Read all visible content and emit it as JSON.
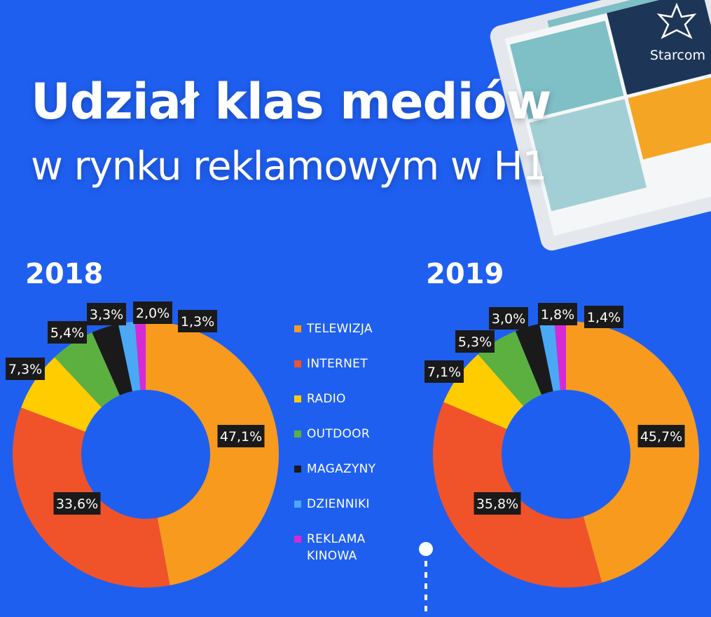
{
  "header": {
    "title": "Udział klas mediów",
    "subtitle": "w rynku reklamowym w H1",
    "brand": "Starcom"
  },
  "legend": [
    {
      "label": "TELEWIZJA",
      "color": "#f79a1e"
    },
    {
      "label": "INTERNET",
      "color": "#f0532a"
    },
    {
      "label": "RADIO",
      "color": "#ffcc00"
    },
    {
      "label": "OUTDOOR",
      "color": "#5cb040"
    },
    {
      "label": "MAGAZYNY",
      "color": "#1a1a1a"
    },
    {
      "label": "DZIENNIKI",
      "color": "#4aa8f5"
    },
    {
      "label": "REKLAMA KINOWA",
      "color": "#d62ad6"
    }
  ],
  "chart_data": [
    {
      "type": "pie",
      "title": "2018",
      "categories": [
        "TELEWIZJA",
        "INTERNET",
        "RADIO",
        "OUTDOOR",
        "MAGAZYNY",
        "DZIENNIKI",
        "REKLAMA KINOWA"
      ],
      "values": [
        47.1,
        33.6,
        7.3,
        5.4,
        3.3,
        2.0,
        1.3
      ],
      "labels": [
        "47,1%",
        "33,6%",
        "7,3%",
        "5,4%",
        "3,3%",
        "2,0%",
        "1,3%"
      ]
    },
    {
      "type": "pie",
      "title": "2019",
      "categories": [
        "TELEWIZJA",
        "INTERNET",
        "RADIO",
        "OUTDOOR",
        "MAGAZYNY",
        "DZIENNIKI",
        "REKLAMA KINOWA"
      ],
      "values": [
        45.7,
        35.8,
        7.1,
        5.3,
        3.0,
        1.8,
        1.4
      ],
      "labels": [
        "45,7%",
        "35,8%",
        "7,1%",
        "5,3%",
        "3,0%",
        "1,8%",
        "1,4%"
      ]
    }
  ]
}
